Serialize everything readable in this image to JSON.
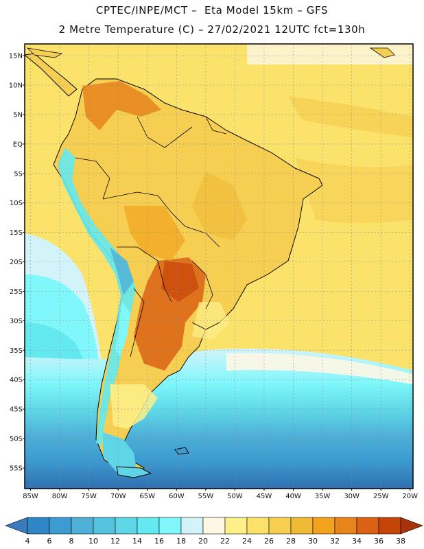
{
  "header": {
    "line1": "CPTEC/INPE/MCT –  Eta Model 15km – GFS",
    "line2": "2 Metre Temperature (C) – 27/02/2021 12UTC fct=130h"
  },
  "map": {
    "lat_labels": [
      "15N",
      "10N",
      "5N",
      "EQ",
      "5S",
      "10S",
      "15S",
      "20S",
      "25S",
      "30S",
      "35S",
      "40S",
      "45S",
      "50S",
      "55S"
    ],
    "lon_labels": [
      "85W",
      "80W",
      "75W",
      "70W",
      "65W",
      "60W",
      "55W",
      "50W",
      "45W",
      "40W",
      "35W",
      "30W",
      "25W",
      "20W"
    ]
  },
  "colorbar": {
    "units": "C",
    "levels": [
      "4",
      "6",
      "8",
      "10",
      "12",
      "14",
      "16",
      "18",
      "20",
      "22",
      "24",
      "26",
      "28",
      "30",
      "32",
      "34",
      "36",
      "38"
    ],
    "colors": [
      "#3a7abd",
      "#2f86c5",
      "#3c9bd0",
      "#4fb0d8",
      "#55c3dd",
      "#5ed6e6",
      "#64e9f0",
      "#7ff7fb",
      "#d3f3fb",
      "#fdf7e4",
      "#fdf08a",
      "#fbe26a",
      "#f6cf52",
      "#efbb37",
      "#f2a21c",
      "#e7841c",
      "#db6114",
      "#c64408",
      "#a8320a"
    ]
  }
}
